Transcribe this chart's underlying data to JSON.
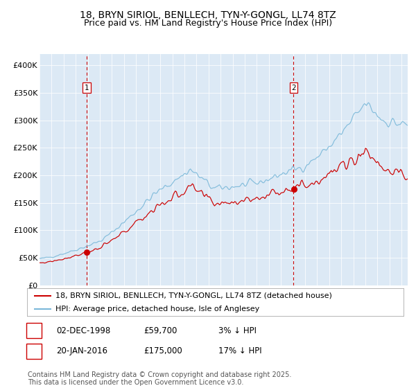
{
  "title_line1": "18, BRYN SIRIOL, BENLLECH, TYN-Y-GONGL, LL74 8TZ",
  "title_line2": "Price paid vs. HM Land Registry's House Price Index (HPI)",
  "ylim": [
    0,
    420000
  ],
  "yticks": [
    0,
    50000,
    100000,
    150000,
    200000,
    250000,
    300000,
    350000,
    400000
  ],
  "ytick_labels": [
    "£0",
    "£50K",
    "£100K",
    "£150K",
    "£200K",
    "£250K",
    "£300K",
    "£350K",
    "£400K"
  ],
  "bg_color": "#dce9f5",
  "outer_bg": "#ffffff",
  "red_line_color": "#cc0000",
  "blue_line_color": "#7ab8d9",
  "vline_color": "#cc0000",
  "purchase1_date": 1998.92,
  "purchase1_price": 59700,
  "purchase1_label": "1",
  "purchase2_date": 2016.05,
  "purchase2_price": 175000,
  "purchase2_label": "2",
  "legend_red": "18, BRYN SIRIOL, BENLLECH, TYN-Y-GONGL, LL74 8TZ (detached house)",
  "legend_blue": "HPI: Average price, detached house, Isle of Anglesey",
  "note1_label": "1",
  "note1_date": "02-DEC-1998",
  "note1_price": "£59,700",
  "note1_extra": "3% ↓ HPI",
  "note2_label": "2",
  "note2_date": "20-JAN-2016",
  "note2_price": "£175,000",
  "note2_extra": "17% ↓ HPI",
  "footer": "Contains HM Land Registry data © Crown copyright and database right 2025.\nThis data is licensed under the Open Government Licence v3.0.",
  "start_year": 1995.0,
  "end_year": 2025.5,
  "title_fontsize": 10,
  "subtitle_fontsize": 9,
  "tick_fontsize": 8,
  "legend_fontsize": 8,
  "note_fontsize": 8.5,
  "footer_fontsize": 7
}
